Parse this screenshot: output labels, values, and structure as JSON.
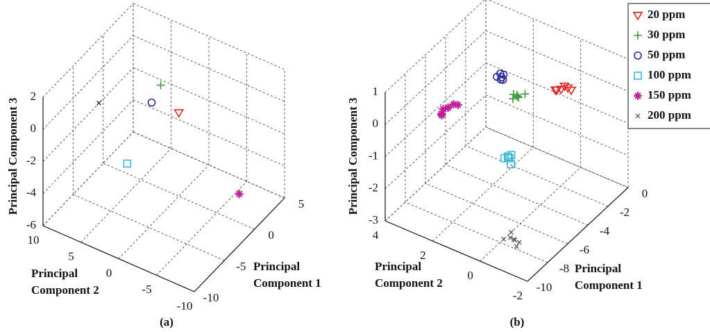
{
  "chart_data": [
    {
      "type": "scatter3d",
      "caption": "(a)",
      "xlabel": "Principal Component 1",
      "ylabel": "Principal Component 2",
      "zlabel": "Principal Component 3",
      "xlim": [
        -10,
        5
      ],
      "xticks": [
        -10,
        -5,
        0,
        5
      ],
      "ylim": [
        -10,
        10
      ],
      "yticks": [
        -10,
        -5,
        0,
        5,
        10
      ],
      "zlim": [
        -6,
        2
      ],
      "zticks": [
        -6,
        -4,
        -2,
        0,
        2
      ],
      "grid": true,
      "series": [
        {
          "color": "#e02424",
          "marker": "v",
          "x": [
            0
          ],
          "y": [
            0
          ],
          "z": [
            -0.8
          ]
        },
        {
          "color": "#3a9a3a",
          "marker": "+",
          "x": [
            -0.5
          ],
          "y": [
            2
          ],
          "z": [
            0.7
          ]
        },
        {
          "color": "#2a2a9a",
          "marker": "o",
          "x": [
            -2
          ],
          "y": [
            2
          ],
          "z": [
            0.2
          ]
        },
        {
          "color": "#3cb8d8",
          "marker": "s",
          "x": [
            -2.3
          ],
          "y": [
            5
          ],
          "z": [
            -4.1
          ]
        },
        {
          "color": "#c0209a",
          "marker": "*",
          "x": [
            2.5
          ],
          "y": [
            -6
          ],
          "z": [
            -5.6
          ]
        },
        {
          "color": "#222222",
          "marker": "x",
          "x": [
            -7
          ],
          "y": [
            5
          ],
          "z": [
            1.5
          ]
        }
      ]
    },
    {
      "type": "scatter3d",
      "caption": "(b)",
      "xlabel": "Principal Component 1",
      "ylabel": "Principal Component 2",
      "zlabel": "Principal Component 3",
      "xlim": [
        -10,
        0
      ],
      "xticks": [
        -10,
        -8,
        -6,
        -4,
        -2,
        0
      ],
      "ylim": [
        -2,
        4
      ],
      "yticks": [
        -2,
        0,
        2,
        4
      ],
      "zlim": [
        -3,
        1
      ],
      "zticks": [
        -3,
        -2,
        -1,
        0,
        1
      ],
      "grid": true,
      "legend": "top-right",
      "series": [
        {
          "name": "20 ppm",
          "color": "#e02424",
          "marker": "v",
          "x": [
            -4.3,
            -4.1,
            -4.4,
            -4.2,
            -4.5,
            -4.0
          ],
          "y": [
            -1,
            -1.2,
            -0.8,
            -1.1,
            -0.9,
            -1.3
          ],
          "z": [
            1.0,
            1.05,
            0.95,
            1.1,
            1.0,
            0.98
          ]
        },
        {
          "name": "30 ppm",
          "color": "#3a9a3a",
          "marker": "+",
          "x": [
            -6.3,
            -6.1,
            -6.4,
            -6.2,
            -6.0,
            -6.5
          ],
          "y": [
            0,
            0.1,
            -0.1,
            0.2,
            -0.2,
            0.1
          ],
          "z": [
            1.05,
            1.0,
            1.08,
            1.02,
            1.1,
            1.0
          ]
        },
        {
          "name": "50 ppm",
          "color": "#2a2a9a",
          "marker": "o",
          "x": [
            -5.5,
            -5.4,
            -5.6,
            -5.3,
            -5.5,
            -5.7
          ],
          "y": [
            1,
            1.1,
            0.9,
            1.0,
            1.2,
            0.95
          ],
          "z": [
            1.1,
            1.15,
            1.08,
            1.12,
            1.05,
            1.1
          ]
        },
        {
          "name": "100 ppm",
          "color": "#3cb8d8",
          "marker": "s",
          "x": [
            -7.2,
            -7.0,
            -7.3,
            -7.1,
            -6.9,
            -7.4
          ],
          "y": [
            0,
            0.1,
            -0.1,
            0.2,
            0,
            -0.2
          ],
          "z": [
            -0.6,
            -0.65,
            -0.55,
            -0.7,
            -0.6,
            -0.68
          ]
        },
        {
          "name": "150 ppm",
          "color": "#c0209a",
          "marker": "*",
          "x": [
            -6.1,
            -6.5,
            -5.8,
            -6.3,
            -5.6,
            -6.6,
            -6.0
          ],
          "y": [
            3,
            3.1,
            2.9,
            3.2,
            2.8,
            3.0,
            3.05
          ],
          "z": [
            -0.3,
            -0.45,
            -0.25,
            -0.5,
            -0.3,
            -0.2,
            -0.35
          ]
        },
        {
          "name": "200 ppm",
          "color": "#444444",
          "marker": "x",
          "x": [
            -9,
            -8.8,
            -9.2,
            -8.9,
            -9.1,
            -8.7,
            -9.3
          ],
          "y": [
            -1,
            -0.8,
            -1.2,
            -1.0,
            -0.9,
            -1.1,
            -0.7
          ],
          "z": [
            -2.3,
            -2.2,
            -2.4,
            -2.35,
            -2.25,
            -2.45,
            -2.3
          ]
        }
      ]
    }
  ]
}
